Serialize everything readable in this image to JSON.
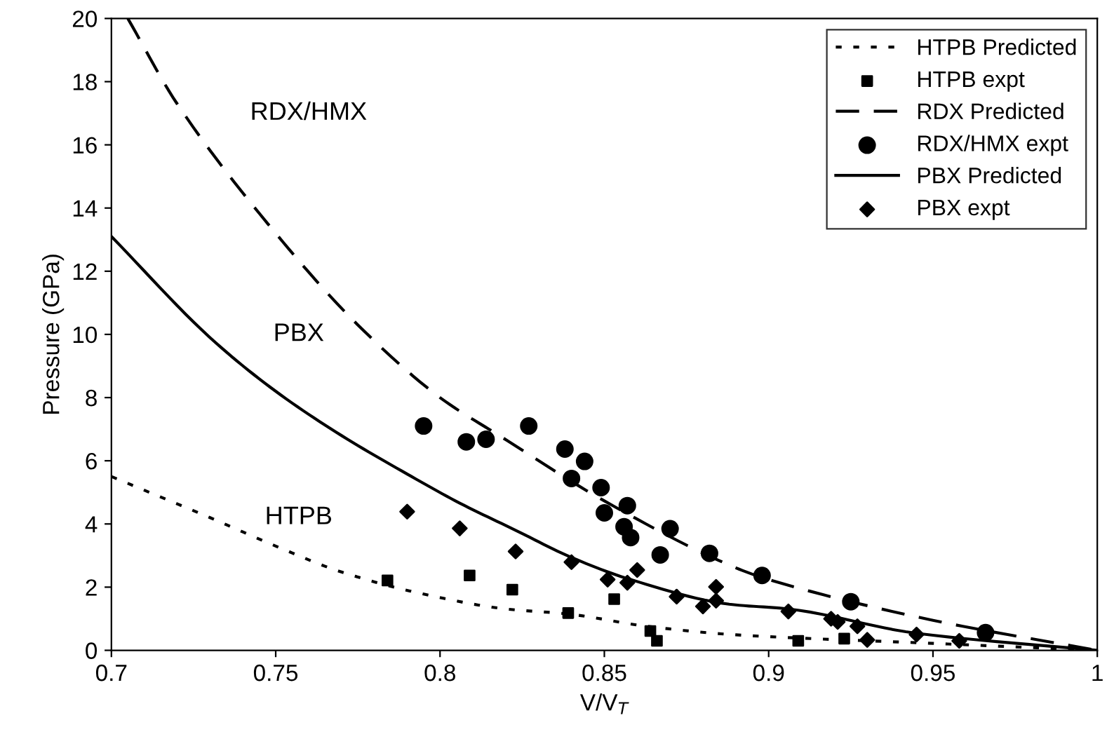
{
  "chart_data": {
    "type": "line",
    "xlabel": "V/V$_{T}$",
    "ylabel": "Pressure (GPa)",
    "xlim": [
      0.7,
      1
    ],
    "ylim": [
      0,
      20
    ],
    "xticks": [
      0.7,
      0.75,
      0.8,
      0.85,
      0.9,
      0.95,
      1
    ],
    "yticks": [
      0,
      2,
      4,
      6,
      8,
      10,
      12,
      14,
      16,
      18,
      20
    ],
    "grid": false,
    "legend": "top right",
    "annotations": [
      "RDX/HMX",
      "PBX",
      "HTPB"
    ],
    "series": [
      {
        "name": "HTPB Predicted",
        "line_style": "dotted",
        "marker": "none",
        "color": "#000000",
        "x": [
          0.7,
          0.73,
          0.75,
          0.77,
          0.795,
          0.82,
          0.839,
          0.863,
          0.89,
          0.95,
          1
        ],
        "values": [
          5.5,
          4.2,
          3.3,
          2.48,
          1.78,
          1.31,
          1.15,
          0.76,
          0.49,
          0.22,
          0
        ]
      },
      {
        "name": "HTPB expt",
        "type": "scatter",
        "marker": "square",
        "color": "#000000",
        "x": [
          0.784,
          0.809,
          0.822,
          0.839,
          0.853,
          0.864,
          0.866,
          0.909,
          0.923
        ],
        "values": [
          2.21,
          2.37,
          1.92,
          1.18,
          1.62,
          0.61,
          0.3,
          0.3,
          0.37
        ]
      },
      {
        "name": "RDX Predicted",
        "line_style": "dashed",
        "marker": "none",
        "color": "#000000",
        "x": [
          0.705,
          0.72,
          0.75,
          0.775,
          0.8,
          0.818,
          0.85,
          0.888,
          0.9,
          0.95,
          1
        ],
        "values": [
          20,
          17.3,
          13.2,
          10.3,
          8.0,
          6.8,
          4.73,
          2.7,
          2.24,
          0.95,
          0
        ]
      },
      {
        "name": "RDX/HMX expt",
        "type": "scatter",
        "marker": "circle",
        "color": "#000000",
        "x": [
          0.795,
          0.808,
          0.814,
          0.827,
          0.838,
          0.84,
          0.844,
          0.849,
          0.85,
          0.856,
          0.857,
          0.858,
          0.867,
          0.87,
          0.882,
          0.898,
          0.925,
          0.966
        ],
        "values": [
          7.1,
          6.6,
          6.68,
          7.1,
          6.37,
          5.44,
          5.98,
          5.15,
          4.35,
          3.91,
          4.58,
          3.57,
          3.02,
          3.85,
          3.07,
          2.37,
          1.54,
          0.56
        ]
      },
      {
        "name": "PBX Predicted",
        "line_style": "solid",
        "marker": "none",
        "color": "#000000",
        "x": [
          0.7,
          0.73,
          0.75,
          0.77,
          0.79,
          0.806,
          0.823,
          0.84,
          0.858,
          0.888,
          0.906,
          0.945,
          1
        ],
        "values": [
          13.1,
          9.9,
          8.2,
          6.8,
          5.58,
          4.66,
          3.8,
          2.94,
          2.24,
          1.46,
          1.31,
          0.54,
          0
        ]
      },
      {
        "name": "PBX expt",
        "type": "scatter",
        "marker": "diamond",
        "color": "#000000",
        "x": [
          0.79,
          0.806,
          0.823,
          0.84,
          0.851,
          0.857,
          0.86,
          0.872,
          0.88,
          0.884,
          0.884,
          0.906,
          0.919,
          0.921,
          0.927,
          0.93,
          0.945,
          0.958
        ],
        "values": [
          4.39,
          3.86,
          3.13,
          2.79,
          2.24,
          2.14,
          2.54,
          1.7,
          1.39,
          2.01,
          1.57,
          1.23,
          1.0,
          0.9,
          0.76,
          0.33,
          0.5,
          0.3
        ]
      }
    ]
  }
}
